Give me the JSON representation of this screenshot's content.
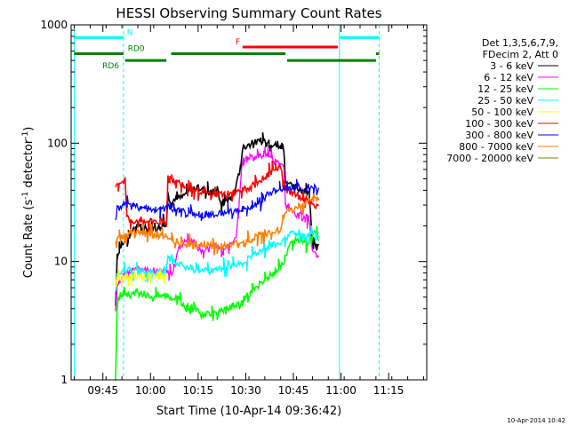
{
  "chart_data": {
    "type": "line",
    "title": "HESSI Observing Summary Count Rates",
    "xlabel": "Start Time (10-Apr-14 09:36:42)",
    "ylabel": "Count Rate (s",
    "ylabel_sup1": "-1",
    "ylabel_mid": " detector",
    "ylabel_sup2": "-1",
    "ylabel_end": ")",
    "scale": "log-y",
    "xlim_minutes": [
      -1,
      111
    ],
    "ylim": [
      1,
      1000
    ],
    "x_ticks": [
      {
        "m": 9,
        "label": "09:45"
      },
      {
        "m": 24,
        "label": "10:00"
      },
      {
        "m": 39,
        "label": "10:15"
      },
      {
        "m": 54,
        "label": "10:30"
      },
      {
        "m": 69,
        "label": "10:45"
      },
      {
        "m": 84,
        "label": "11:00"
      },
      {
        "m": 99,
        "label": "11:15"
      }
    ],
    "y_ticks": [
      {
        "v": 1,
        "label": "1"
      },
      {
        "v": 10,
        "label": "10"
      },
      {
        "v": 100,
        "label": "100"
      },
      {
        "v": 1000,
        "label": "1000"
      }
    ],
    "legend": {
      "header1": "Det 1,3,5,6,7,9,",
      "header2": "FDecim 2, Att 0",
      "entries": [
        {
          "label": "3 - 6 keV",
          "color": "#000000"
        },
        {
          "label": "6 - 12 keV",
          "color": "#ff00ff"
        },
        {
          "label": "12 - 25 keV",
          "color": "#00ff00"
        },
        {
          "label": "25 - 50 keV",
          "color": "#00ffff"
        },
        {
          "label": "50 - 100 keV",
          "color": "#ffff00"
        },
        {
          "label": "100 - 300 keV",
          "color": "#ff0000"
        },
        {
          "label": "300 - 800 keV",
          "color": "#0000ff"
        },
        {
          "label": "800 - 7000 keV",
          "color": "#ff8000"
        },
        {
          "label": "7000 - 20000 keV",
          "color": "#808000"
        }
      ]
    },
    "flags": [
      {
        "name": "N",
        "color": "#00ffff",
        "label_m": 17.5,
        "level": 780,
        "ranges": [
          [
            0,
            15.5
          ],
          [
            83.5,
            96
          ]
        ]
      },
      {
        "name": "F",
        "color": "#ff0000",
        "label_m": 51.5,
        "level": 650,
        "ranges": [
          [
            53,
            83
          ]
        ]
      },
      {
        "name": "RD0",
        "color": "#008000",
        "label_m": 19.5,
        "level": 570,
        "ranges": [
          [
            0,
            15.5
          ],
          [
            30.5,
            66.5
          ],
          [
            95,
            96
          ]
        ]
      },
      {
        "name": "RD6",
        "color": "#008000",
        "label_m": 11.5,
        "level": 500,
        "ranges": [
          [
            16,
            29
          ],
          [
            67,
            95
          ]
        ]
      }
    ],
    "vertical_lines": [
      {
        "m": 0,
        "color": "#00ffff",
        "style": "solid"
      },
      {
        "m": 15.5,
        "color": "#00ffff",
        "style": "dashed"
      },
      {
        "m": 83.5,
        "color": "#00ffff",
        "style": "solid"
      },
      {
        "m": 96,
        "color": "#00ffff",
        "style": "dashed"
      }
    ],
    "series": [
      {
        "name": "3 - 6 keV",
        "color": "#000000",
        "points": [
          [
            13,
            4
          ],
          [
            13.5,
            11
          ],
          [
            14.5,
            13
          ],
          [
            15.5,
            15
          ],
          [
            16,
            16
          ],
          [
            17,
            15
          ],
          [
            18,
            18
          ],
          [
            20,
            20
          ],
          [
            22,
            19
          ],
          [
            24,
            19
          ],
          [
            26,
            19
          ],
          [
            28,
            21
          ],
          [
            29,
            21
          ],
          [
            29.5,
            33
          ],
          [
            31,
            33
          ],
          [
            34,
            35
          ],
          [
            36,
            40
          ],
          [
            38,
            41
          ],
          [
            40,
            42
          ],
          [
            42,
            39
          ],
          [
            44,
            38
          ],
          [
            45,
            42
          ],
          [
            46,
            31
          ],
          [
            48,
            33
          ],
          [
            50,
            36
          ],
          [
            51,
            43
          ],
          [
            52,
            58
          ],
          [
            53,
            92
          ],
          [
            56,
            100
          ],
          [
            59,
            105
          ],
          [
            62,
            100
          ],
          [
            64,
            95
          ],
          [
            66,
            90
          ],
          [
            66.5,
            48
          ],
          [
            70,
            42
          ],
          [
            74,
            38
          ],
          [
            75,
            13
          ],
          [
            76,
            14
          ],
          [
            77,
            14
          ]
        ]
      },
      {
        "name": "6 - 12 keV",
        "color": "#ff00ff",
        "points": [
          [
            13,
            4
          ],
          [
            13.5,
            6.5
          ],
          [
            14.5,
            7
          ],
          [
            15.5,
            7.5
          ],
          [
            16,
            8
          ],
          [
            17,
            8
          ],
          [
            19,
            9
          ],
          [
            22,
            8.5
          ],
          [
            24,
            8.5
          ],
          [
            26,
            8.5
          ],
          [
            28,
            8.5
          ],
          [
            29,
            8.5
          ],
          [
            29.5,
            8
          ],
          [
            31,
            8
          ],
          [
            33,
            13
          ],
          [
            35,
            15
          ],
          [
            37,
            15
          ],
          [
            39,
            13
          ],
          [
            41,
            12
          ],
          [
            43,
            13
          ],
          [
            45,
            14
          ],
          [
            47,
            12
          ],
          [
            49,
            14
          ],
          [
            51,
            17
          ],
          [
            52,
            35
          ],
          [
            53,
            72
          ],
          [
            56,
            75
          ],
          [
            59,
            80
          ],
          [
            62,
            75
          ],
          [
            64,
            70
          ],
          [
            66,
            62
          ],
          [
            66.5,
            30
          ],
          [
            70,
            25
          ],
          [
            74,
            23
          ],
          [
            75,
            12
          ],
          [
            76,
            12
          ],
          [
            77,
            11
          ]
        ]
      },
      {
        "name": "12 - 25 keV",
        "color": "#00ff00",
        "points": [
          [
            13,
            1
          ],
          [
            13.5,
            4.5
          ],
          [
            14.5,
            5.2
          ],
          [
            15.5,
            5.5
          ],
          [
            16,
            5.5
          ],
          [
            18,
            5.2
          ],
          [
            20,
            5.5
          ],
          [
            22,
            5.2
          ],
          [
            24,
            5.2
          ],
          [
            26,
            5.2
          ],
          [
            28,
            5.2
          ],
          [
            29,
            5.2
          ],
          [
            29.5,
            5.2
          ],
          [
            31,
            5
          ],
          [
            33,
            4.8
          ],
          [
            35,
            4
          ],
          [
            37,
            4
          ],
          [
            40,
            3.6
          ],
          [
            43,
            3.6
          ],
          [
            46,
            3.7
          ],
          [
            48,
            4
          ],
          [
            50,
            4.2
          ],
          [
            52,
            4.3
          ],
          [
            54,
            5
          ],
          [
            57,
            6
          ],
          [
            60,
            7
          ],
          [
            63,
            8
          ],
          [
            66,
            10
          ],
          [
            68,
            14
          ],
          [
            70,
            15
          ],
          [
            73,
            14
          ],
          [
            75,
            17
          ],
          [
            76,
            17
          ],
          [
            77,
            15
          ]
        ]
      },
      {
        "name": "25 - 50 keV",
        "color": "#00ffff",
        "points": [
          [
            13,
            5.5
          ],
          [
            13.5,
            7.5
          ],
          [
            14.5,
            8
          ],
          [
            15.5,
            8.5
          ],
          [
            16,
            8.5
          ],
          [
            17,
            8.5
          ],
          [
            19,
            8.3
          ],
          [
            22,
            8.2
          ],
          [
            24,
            8.2
          ],
          [
            26,
            8.2
          ],
          [
            28,
            8.2
          ],
          [
            29,
            8.2
          ],
          [
            29.5,
            11
          ],
          [
            31,
            10
          ],
          [
            33,
            9.5
          ],
          [
            35,
            9
          ],
          [
            37,
            8.8
          ],
          [
            40,
            8.3
          ],
          [
            43,
            8.5
          ],
          [
            46,
            8.8
          ],
          [
            48,
            9
          ],
          [
            50,
            9.3
          ],
          [
            52,
            9.5
          ],
          [
            54,
            10
          ],
          [
            57,
            12
          ],
          [
            60,
            13
          ],
          [
            63,
            14
          ],
          [
            66,
            15
          ],
          [
            68,
            17
          ],
          [
            70,
            17
          ],
          [
            73,
            16
          ],
          [
            75,
            17
          ],
          [
            76,
            17
          ],
          [
            77,
            16
          ]
        ]
      },
      {
        "name": "50 - 100 keV",
        "color": "#ffff00",
        "points": [
          [
            13,
            6.5
          ],
          [
            13.5,
            7
          ],
          [
            14.5,
            7
          ],
          [
            15.5,
            7.5
          ],
          [
            16,
            7.5
          ],
          [
            18,
            7.5
          ],
          [
            20,
            7.5
          ],
          [
            22,
            7.5
          ],
          [
            24,
            7.5
          ],
          [
            26,
            7.5
          ],
          [
            28,
            7.5
          ],
          [
            29,
            7.5
          ]
        ]
      },
      {
        "name": "100 - 300 keV",
        "color": "#ff0000",
        "points": [
          [
            13,
            45
          ],
          [
            13.5,
            45
          ],
          [
            14.5,
            47
          ],
          [
            15.5,
            48
          ],
          [
            16,
            49
          ],
          [
            16.5,
            25
          ],
          [
            18,
            22
          ],
          [
            20,
            22
          ],
          [
            22,
            22
          ],
          [
            24,
            22
          ],
          [
            26,
            22
          ],
          [
            28,
            22
          ],
          [
            29,
            22
          ],
          [
            29.5,
            50
          ],
          [
            31,
            48
          ],
          [
            33,
            46
          ],
          [
            35,
            43
          ],
          [
            37,
            41
          ],
          [
            39,
            40
          ],
          [
            41,
            38
          ],
          [
            43,
            37
          ],
          [
            45,
            37
          ],
          [
            47,
            37
          ],
          [
            49,
            37
          ],
          [
            51,
            38
          ],
          [
            53,
            40
          ],
          [
            55,
            42
          ],
          [
            57,
            45
          ],
          [
            59,
            50
          ],
          [
            61,
            55
          ],
          [
            63,
            60
          ],
          [
            65,
            65
          ],
          [
            66,
            42
          ],
          [
            68,
            38
          ],
          [
            70,
            36
          ],
          [
            72,
            35
          ],
          [
            74,
            32
          ],
          [
            76,
            30
          ],
          [
            77,
            30
          ]
        ]
      },
      {
        "name": "300 - 800 keV",
        "color": "#0000ff",
        "points": [
          [
            13,
            23
          ],
          [
            13.5,
            28
          ],
          [
            14.5,
            29
          ],
          [
            15.5,
            30
          ],
          [
            16,
            30
          ],
          [
            18,
            29
          ],
          [
            20,
            29
          ],
          [
            22,
            28
          ],
          [
            24,
            28
          ],
          [
            26,
            28
          ],
          [
            28,
            28
          ],
          [
            29,
            28
          ],
          [
            29.5,
            29
          ],
          [
            31,
            28
          ],
          [
            33,
            27
          ],
          [
            35,
            26
          ],
          [
            37,
            25.5
          ],
          [
            39,
            25
          ],
          [
            41,
            25
          ],
          [
            43,
            25
          ],
          [
            45,
            25
          ],
          [
            47,
            25.5
          ],
          [
            49,
            26
          ],
          [
            51,
            27
          ],
          [
            53,
            27.5
          ],
          [
            55,
            28
          ],
          [
            57,
            30
          ],
          [
            59,
            33
          ],
          [
            61,
            37
          ],
          [
            63,
            39
          ],
          [
            65,
            40
          ],
          [
            67,
            41
          ],
          [
            69,
            41
          ],
          [
            71,
            42
          ],
          [
            73,
            43
          ],
          [
            75,
            42
          ],
          [
            77,
            42
          ]
        ]
      },
      {
        "name": "800 - 7000 keV",
        "color": "#ff8000",
        "points": [
          [
            13,
            14
          ],
          [
            13.5,
            15
          ],
          [
            14.5,
            16
          ],
          [
            15.5,
            17
          ],
          [
            16,
            17
          ],
          [
            18,
            17.5
          ],
          [
            20,
            17.5
          ],
          [
            22,
            17.5
          ],
          [
            24,
            17
          ],
          [
            26,
            16.5
          ],
          [
            28,
            16.5
          ],
          [
            29,
            16.5
          ],
          [
            29.5,
            16
          ],
          [
            31,
            15
          ],
          [
            33,
            14.5
          ],
          [
            35,
            14
          ],
          [
            37,
            14
          ],
          [
            39,
            14
          ],
          [
            41,
            14
          ],
          [
            43,
            13.5
          ],
          [
            45,
            13.5
          ],
          [
            47,
            13.5
          ],
          [
            49,
            13.5
          ],
          [
            51,
            14
          ],
          [
            53,
            14.5
          ],
          [
            55,
            15
          ],
          [
            57,
            16
          ],
          [
            59,
            17
          ],
          [
            61,
            17.5
          ],
          [
            63,
            18
          ],
          [
            65,
            18
          ],
          [
            66,
            25
          ],
          [
            68,
            27
          ],
          [
            70,
            28
          ],
          [
            72,
            30
          ],
          [
            74,
            32
          ],
          [
            76,
            33
          ],
          [
            77,
            33
          ]
        ]
      },
      {
        "name": "7000 - 20000 keV",
        "color": "#808000",
        "points": []
      }
    ]
  },
  "footer": {
    "timestamp": "10-Apr-2014 10:42"
  }
}
